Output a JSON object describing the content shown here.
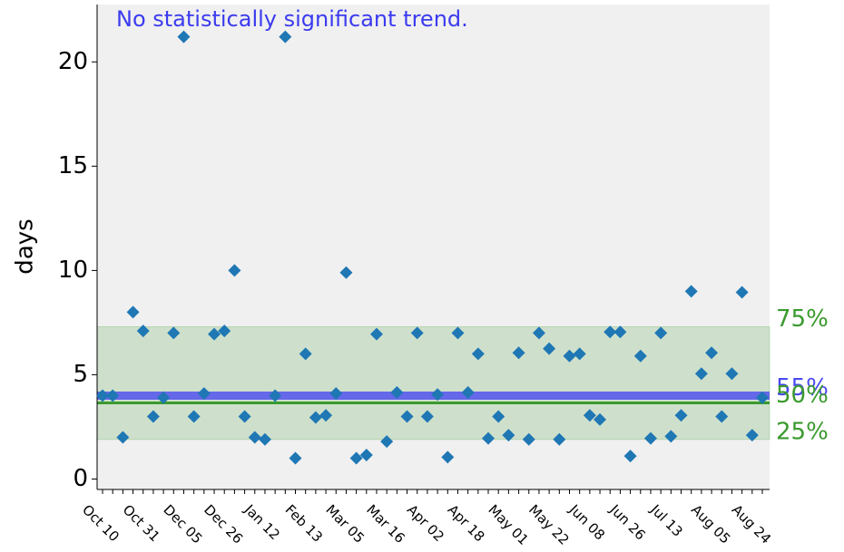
{
  "chart_data": {
    "type": "scatter",
    "annotation": "No statistically significant trend.",
    "ylabel": "days",
    "categories": [
      "Oct 10",
      null,
      null,
      null,
      "Oct 31",
      null,
      null,
      null,
      "Dec 05",
      null,
      null,
      null,
      "Dec 26",
      null,
      null,
      null,
      "Jan 12",
      null,
      null,
      null,
      "Feb 13",
      null,
      null,
      null,
      "Mar 05",
      null,
      null,
      null,
      "Mar 16",
      null,
      null,
      null,
      "Apr 02",
      null,
      null,
      null,
      "Apr 18",
      null,
      null,
      null,
      "May 01",
      null,
      null,
      null,
      "May 22",
      null,
      null,
      null,
      "Jun 08",
      null,
      null,
      null,
      "Jun 26",
      null,
      null,
      null,
      "Jul 13",
      null,
      null,
      null,
      "Aug 05",
      null,
      null,
      null,
      "Aug 24",
      null
    ],
    "values": [
      4.0,
      4.0,
      2.0,
      8.0,
      7.1,
      3.0,
      3.9,
      7.0,
      21.2,
      3.0,
      4.1,
      6.95,
      7.1,
      10.0,
      3.0,
      2.0,
      1.9,
      4.0,
      21.2,
      1.0,
      6.0,
      2.95,
      3.05,
      4.1,
      9.9,
      1.0,
      1.15,
      6.95,
      1.8,
      4.15,
      3.0,
      7.0,
      3.0,
      4.05,
      1.05,
      7.0,
      4.15,
      6.0,
      1.95,
      3.0,
      2.1,
      6.05,
      1.9,
      7.0,
      6.25,
      1.9,
      5.9,
      6.0,
      3.05,
      2.85,
      7.05,
      7.05,
      1.1,
      5.9,
      1.95,
      7.0,
      2.05,
      3.05,
      9.0,
      5.05,
      6.05,
      3.0,
      5.05,
      8.95,
      2.1,
      3.9
    ],
    "color": "#1f77b4",
    "annotation_color": "#3b3bf0",
    "ylim": [
      -0.5,
      22.75
    ],
    "yticks": [
      0,
      5,
      10,
      15,
      20
    ],
    "reference_lines": [
      {
        "label": "75%",
        "value": 7.3,
        "color": "#3a9a2e",
        "kind": "band-edge"
      },
      {
        "label": "55%",
        "value": 4.0,
        "color": "#4a4af0",
        "kind": "line"
      },
      {
        "label": "50%",
        "value": 3.65,
        "color": "#3a9a2e",
        "kind": "line"
      },
      {
        "label": "25%",
        "value": 1.9,
        "color": "#3a9a2e",
        "kind": "band-edge"
      }
    ]
  }
}
